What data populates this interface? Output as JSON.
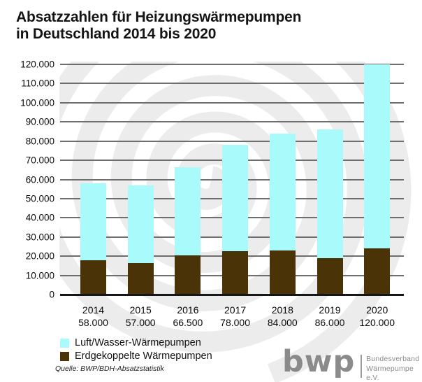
{
  "title": {
    "line1": "Absatzzahlen für Heizungswärmepumpen",
    "line2": "in Deutschland 2014 bis 2020"
  },
  "chart_data": {
    "type": "bar",
    "stacked": true,
    "categories": [
      "2014",
      "2015",
      "2016",
      "2017",
      "2018",
      "2019",
      "2020"
    ],
    "series": [
      {
        "name": "Luft/Wasser-Wärmepumpen",
        "color": "#a9fbfb",
        "values": [
          40000,
          40500,
          46000,
          55500,
          61000,
          67000,
          96000
        ]
      },
      {
        "name": "Erdgekoppelte Wärmepumpen",
        "color": "#4a3307",
        "values": [
          18000,
          16500,
          20500,
          22500,
          23000,
          19000,
          24000
        ]
      }
    ],
    "totals": [
      58000,
      57000,
      66500,
      78000,
      84000,
      86000,
      120000
    ],
    "total_labels": [
      "58.000",
      "57.000",
      "66.500",
      "78.000",
      "84.000",
      "86.000",
      "120.000"
    ],
    "ylim": [
      0,
      120000
    ],
    "ytick_step": 10000,
    "ytick_labels_top_to_bottom": [
      "120.000",
      "110.000",
      "100.000",
      "90.000",
      "80.000",
      "70.000",
      "60.000",
      "50.000",
      "40.000",
      "30.000",
      "20.000",
      "10.000",
      "0"
    ],
    "grid": true,
    "legend_position": "bottom-left",
    "xlabel": "",
    "ylabel": ""
  },
  "legend": {
    "items": [
      {
        "label": "Luft/Wasser-Wärmepumpen",
        "color": "#a9fbfb"
      },
      {
        "label": "Erdgekoppelte Wärmepumpen",
        "color": "#4a3307"
      }
    ]
  },
  "source": "Quelle: BWP/BDH-Absatzstatistik",
  "logo": {
    "mark": "bwp",
    "org_line1": "Bundesverband",
    "org_line2": "Wärmepumpe e.V."
  },
  "colors": {
    "air_water_bar": "#a9fbfb",
    "ground_bar": "#4a3307",
    "gridline": "#6e6e6e",
    "axis_baseline": "#161616",
    "watermark": "#ececec",
    "logo_gray": "#8b8b8b",
    "text": "#1a1a1a"
  }
}
